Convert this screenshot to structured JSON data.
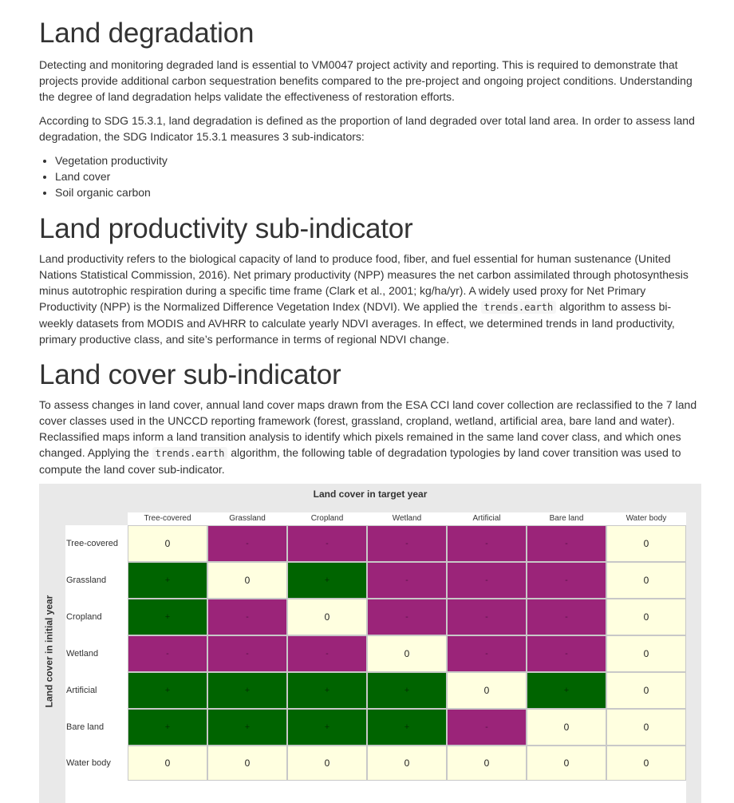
{
  "sections": {
    "degradation": {
      "title": "Land degradation",
      "p1": "Detecting and monitoring degraded land is essential to VM0047 project activity and reporting. This is required to demonstrate that projects provide additional carbon sequestration benefits compared to the pre-project and ongoing project conditions. Understanding the degree of land degradation helps validate the effectiveness of restoration efforts.",
      "p2": "According to SDG 15.3.1, land degradation is defined as the proportion of land degraded over total land area. In order to assess land degradation, the SDG Indicator 15.3.1 measures 3 sub-indicators:",
      "bullets": [
        "Vegetation productivity",
        "Land cover",
        "Soil organic carbon"
      ]
    },
    "productivity": {
      "title": "Land productivity sub-indicator",
      "p_before_code": "Land productivity refers to the biological capacity of land to produce food, fiber, and fuel essential for human sustenance (United Nations Statistical Commission, 2016). Net primary productivity (NPP) measures the net carbon assimilated through photosynthesis minus autotrophic respiration during a specific time frame (Clark et al., 2001; kg/ha/yr). A widely used proxy for Net Primary Productivity (NPP) is the Normalized Difference Vegetation Index (NDVI). We applied the ",
      "code": "trends.earth",
      "p_after_code": " algorithm to assess bi-weekly datasets from MODIS and AVHRR to calculate yearly NDVI averages. In effect, we determined trends in land productivity, primary productive class, and site’s performance in terms of regional NDVI change."
    },
    "cover": {
      "title": "Land cover sub-indicator",
      "p_before_code": "To assess changes in land cover, annual land cover maps drawn from the ESA CCI land cover collection are reclassified to the 7 land cover classes used in the UNCCD reporting framework (forest, grassland, cropland, wetland, artificial area, bare land and water). Reclassified maps inform a land transition analysis to identify which pixels remained in the same land cover class, and which ones changed. Applying the ",
      "code": "trends.earth",
      "p_after_code": " algorithm, the following table of degradation typologies by land cover transition was used to compute the land cover sub-indicator."
    }
  },
  "matrix": {
    "title": "Land cover in target year",
    "y_title": "Land cover in initial year",
    "columns": [
      "Tree-covered",
      "Grassland",
      "Cropland",
      "Wetland",
      "Artificial",
      "Bare land",
      "Water body"
    ],
    "rows": [
      "Tree-covered",
      "Grassland",
      "Cropland",
      "Wetland",
      "Artificial",
      "Bare land",
      "Water body"
    ],
    "cells": [
      [
        "0",
        "-",
        "-",
        "-",
        "-",
        "-",
        "0"
      ],
      [
        "+",
        "0",
        "+",
        "-",
        "-",
        "-",
        "0"
      ],
      [
        "+",
        "-",
        "0",
        "-",
        "-",
        "-",
        "0"
      ],
      [
        "-",
        "-",
        "-",
        "0",
        "-",
        "-",
        "0"
      ],
      [
        "+",
        "+",
        "+",
        "+",
        "0",
        "+",
        "0"
      ],
      [
        "+",
        "+",
        "+",
        "+",
        "-",
        "0",
        "0"
      ],
      [
        "0",
        "0",
        "0",
        "0",
        "0",
        "0",
        "0"
      ]
    ],
    "colors": {
      "stable": "#ffffe0",
      "degraded": "#9b2479",
      "improved": "#006400"
    }
  }
}
